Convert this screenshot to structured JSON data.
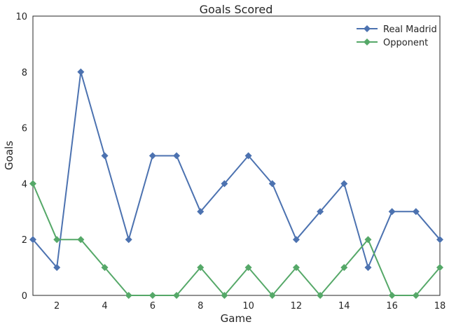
{
  "chart_data": {
    "type": "line",
    "title": "Goals Scored",
    "xlabel": "Game",
    "ylabel": "Goals",
    "x": [
      1,
      2,
      3,
      4,
      5,
      6,
      7,
      8,
      9,
      10,
      11,
      12,
      13,
      14,
      15,
      16,
      17,
      18
    ],
    "xlim": [
      1,
      18
    ],
    "ylim": [
      0,
      10
    ],
    "xticks": [
      2,
      4,
      6,
      8,
      10,
      12,
      14,
      16,
      18
    ],
    "yticks": [
      0,
      2,
      4,
      6,
      8,
      10
    ],
    "grid": false,
    "legend_position": "top-right",
    "series": [
      {
        "name": "Real Madrid",
        "color": "#4c72b0",
        "marker": "diamond",
        "values": [
          2,
          1,
          8,
          5,
          2,
          5,
          5,
          3,
          4,
          5,
          4,
          2,
          3,
          4,
          1,
          3,
          3,
          2
        ]
      },
      {
        "name": "Opponent",
        "color": "#55a868",
        "marker": "diamond",
        "values": [
          4,
          2,
          2,
          1,
          0,
          0,
          0,
          1,
          0,
          1,
          0,
          1,
          0,
          1,
          2,
          0,
          0,
          1
        ]
      }
    ]
  }
}
